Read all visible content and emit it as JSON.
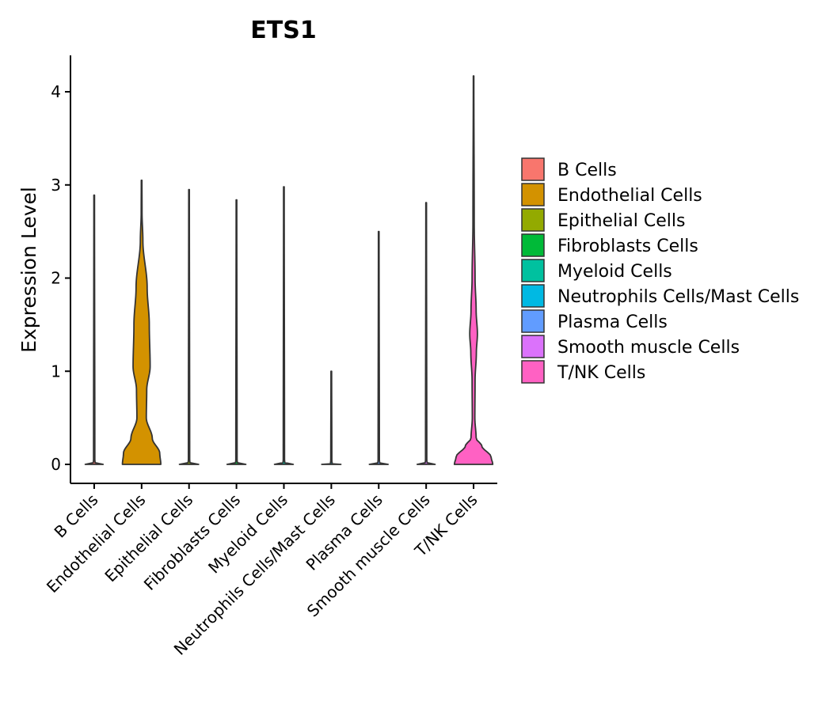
{
  "chart_data": {
    "type": "violin",
    "title": "ETS1",
    "xlabel": "",
    "ylabel": "Expression Level",
    "ylim": [
      -0.2,
      4.4
    ],
    "yticks": [
      0,
      1,
      2,
      3,
      4
    ],
    "grid": false,
    "legend_position": "right",
    "categories": [
      "B Cells",
      "Endothelial Cells",
      "Epithelial Cells",
      "Fibroblasts Cells",
      "Myeloid Cells",
      "Neutrophils Cells/Mast Cells",
      "Plasma Cells",
      "Smooth muscle Cells",
      "T/NK Cells"
    ],
    "colors": [
      "#F8766D",
      "#D39200",
      "#93AA00",
      "#00BA38",
      "#00C19F",
      "#00B9E3",
      "#619CFF",
      "#DB72FB",
      "#FF61C3"
    ],
    "max_values": [
      2.89,
      3.05,
      2.95,
      2.84,
      2.98,
      1.0,
      2.5,
      2.81,
      4.17
    ],
    "density_profiles": [
      [
        [
          0,
          0.42
        ],
        [
          0.005,
          0.05
        ],
        [
          0.05,
          0.03
        ],
        [
          2.89,
          0.015
        ]
      ],
      [
        [
          0,
          0.9
        ],
        [
          0.12,
          0.85
        ],
        [
          0.28,
          0.5
        ],
        [
          0.5,
          0.22
        ],
        [
          0.8,
          0.24
        ],
        [
          1.05,
          0.4
        ],
        [
          1.5,
          0.36
        ],
        [
          1.9,
          0.26
        ],
        [
          2.4,
          0.06
        ],
        [
          2.7,
          0.02
        ],
        [
          3.05,
          0.015
        ]
      ],
      [
        [
          0,
          0.45
        ],
        [
          0.005,
          0.05
        ],
        [
          0.05,
          0.03
        ],
        [
          2.95,
          0.015
        ]
      ],
      [
        [
          0,
          0.44
        ],
        [
          0.005,
          0.05
        ],
        [
          0.05,
          0.03
        ],
        [
          2.84,
          0.015
        ]
      ],
      [
        [
          0,
          0.44
        ],
        [
          0.005,
          0.05
        ],
        [
          0.05,
          0.03
        ],
        [
          2.98,
          0.015
        ]
      ],
      [
        [
          0,
          0.45
        ],
        [
          0.005,
          0.04
        ],
        [
          0.05,
          0.025
        ],
        [
          1.0,
          0.015
        ]
      ],
      [
        [
          0,
          0.44
        ],
        [
          0.005,
          0.05
        ],
        [
          0.05,
          0.03
        ],
        [
          2.5,
          0.015
        ]
      ],
      [
        [
          0,
          0.42
        ],
        [
          0.005,
          0.05
        ],
        [
          0.05,
          0.03
        ],
        [
          2.81,
          0.015
        ]
      ],
      [
        [
          0,
          0.9
        ],
        [
          0.08,
          0.82
        ],
        [
          0.2,
          0.38
        ],
        [
          0.28,
          0.12
        ],
        [
          0.5,
          0.06
        ],
        [
          0.9,
          0.07
        ],
        [
          1.2,
          0.13
        ],
        [
          1.4,
          0.18
        ],
        [
          1.65,
          0.12
        ],
        [
          2.0,
          0.07
        ],
        [
          2.6,
          0.03
        ],
        [
          4.17,
          0.012
        ]
      ]
    ],
    "legend": [
      "B Cells",
      "Endothelial Cells",
      "Epithelial Cells",
      "Fibroblasts Cells",
      "Myeloid Cells",
      "Neutrophils Cells/Mast Cells",
      "Plasma Cells",
      "Smooth muscle Cells",
      "T/NK Cells"
    ]
  }
}
